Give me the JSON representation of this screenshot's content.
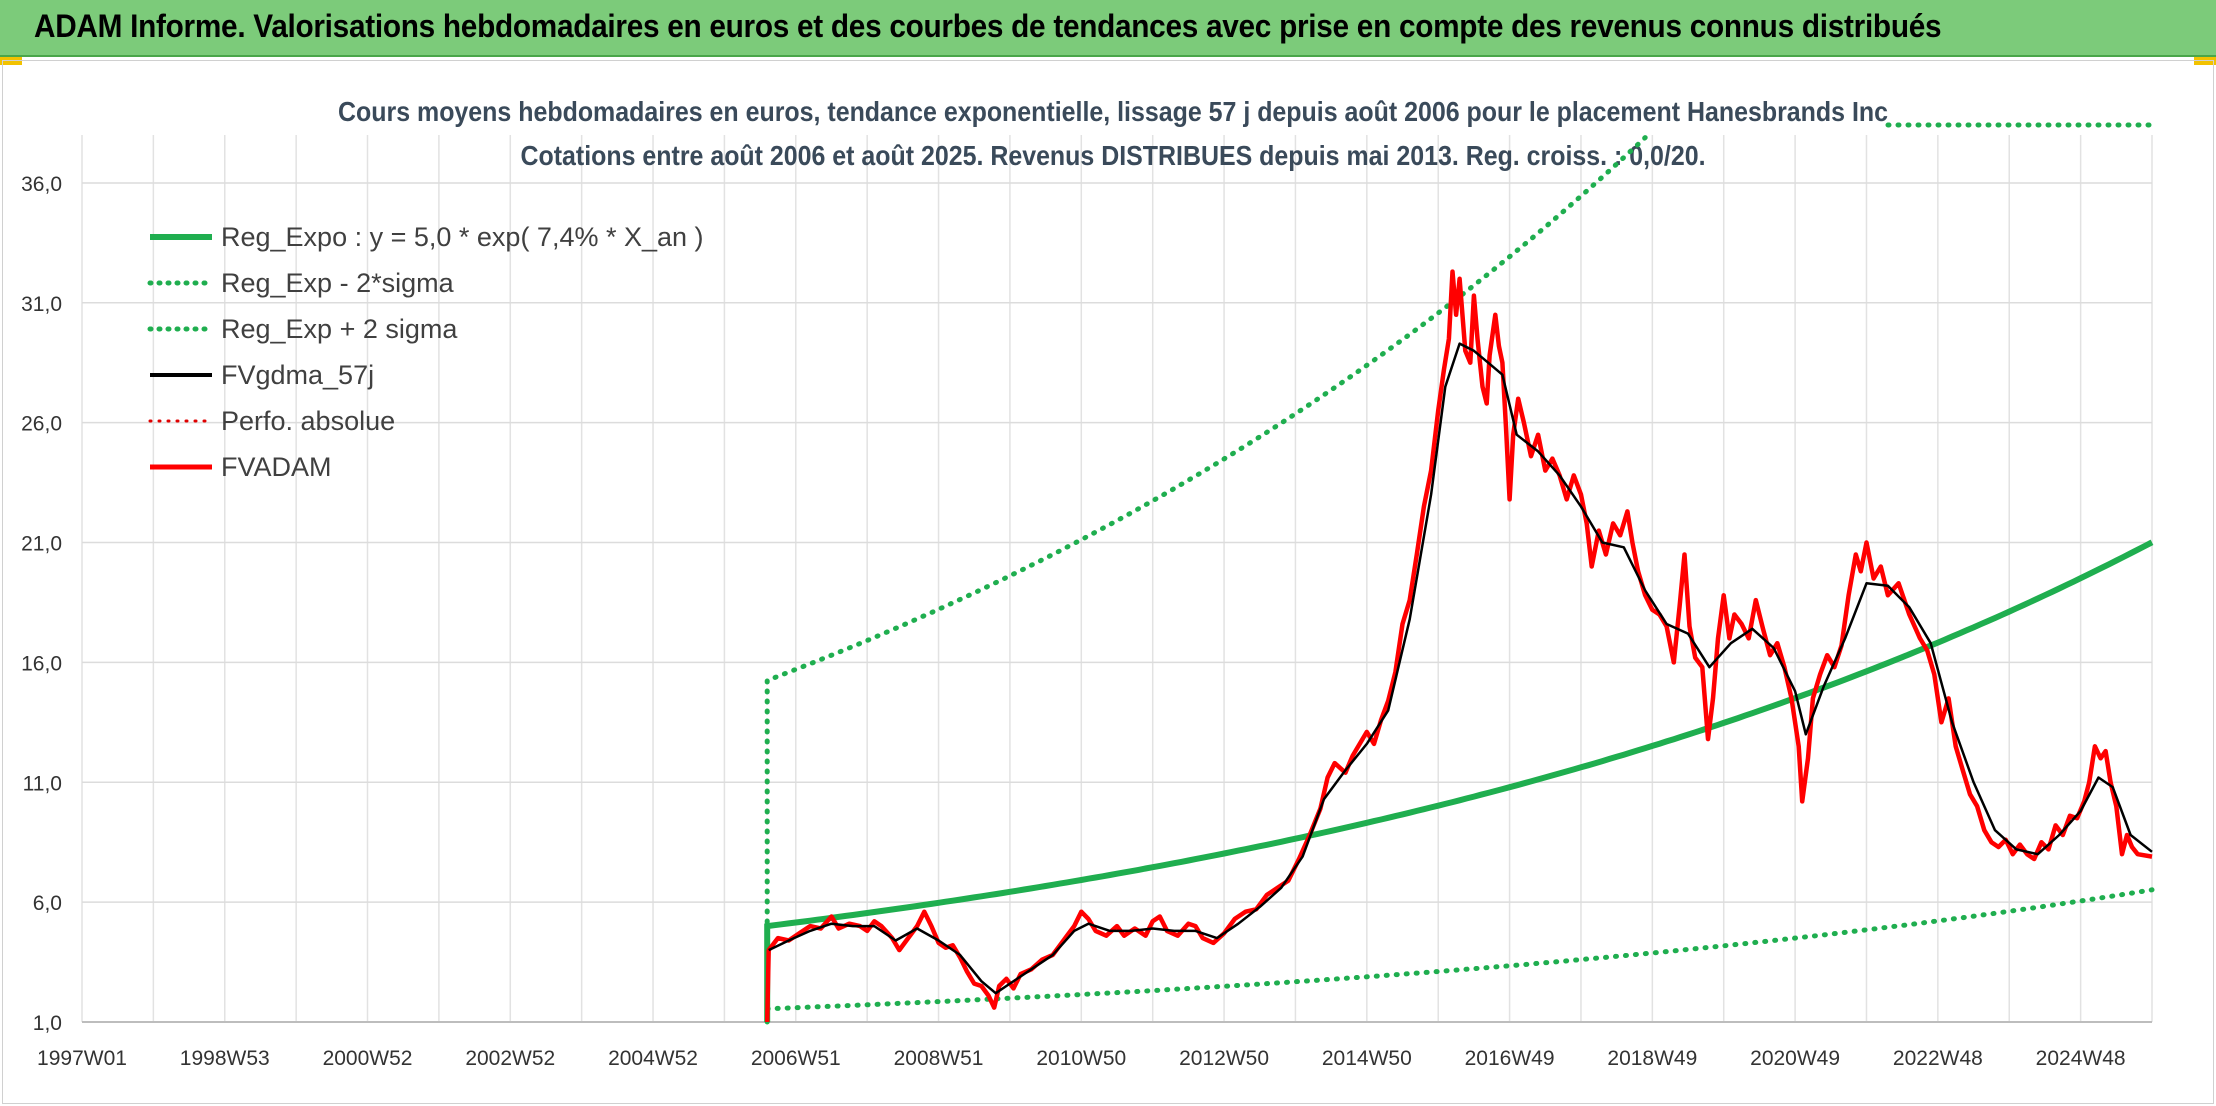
{
  "header": {
    "title": "ADAM Informe. Valorisations hebdomadaires en euros et des courbes de tendances avec prise en compte des revenus connus distribués"
  },
  "chart_data": {
    "type": "line",
    "title": "Cours moyens hebdomadaires en euros, tendance exponentielle, lissage 57 j depuis août 2006 pour le placement Hanesbrands Inc",
    "subtitle": "Cotations entre août 2006 et août 2025. Revenus DISTRIBUES depuis mai 2013. Reg. croiss. : 0,0/20.",
    "x_tick_labels": [
      "1997W01",
      "1998W53",
      "2000W52",
      "2002W52",
      "2004W52",
      "2006W51",
      "2008W51",
      "2010W50",
      "2012W50",
      "2014W50",
      "2016W49",
      "2018W49",
      "2020W49",
      "2022W48",
      "2024W48"
    ],
    "x_tick_years": [
      1997.0,
      1999.0,
      2001.0,
      2003.0,
      2005.0,
      2007.0,
      2009.0,
      2011.0,
      2013.0,
      2015.0,
      2017.0,
      2019.0,
      2021.0,
      2023.0,
      2025.0
    ],
    "x_range": [
      1997.0,
      2026.0
    ],
    "y_tick_labels": [
      "1,0",
      "6,0",
      "11,0",
      "16,0",
      "21,0",
      "26,0",
      "31,0",
      "36,0"
    ],
    "y_ticks": [
      1,
      6,
      11,
      16,
      21,
      26,
      31,
      36
    ],
    "ylim": [
      1,
      38
    ],
    "grid": true,
    "legend_position": "top-left",
    "legend": [
      {
        "label": "Reg_Expo : y = 5,0 * exp( 7,4% *  X_an )",
        "color": "#1fae4f",
        "style": "solid",
        "width": 6
      },
      {
        "label": "Reg_Exp - 2*sigma",
        "color": "#1fae4f",
        "style": "dotted",
        "width": 5
      },
      {
        "label": "Reg_Exp + 2 sigma",
        "color": "#1fae4f",
        "style": "dotted",
        "width": 5
      },
      {
        "label": "FVgdma_57j",
        "color": "#000000",
        "style": "solid",
        "width": 4
      },
      {
        "label": "Perfo. absolue",
        "color": "#e00000",
        "style": "dotted",
        "width": 3
      },
      {
        "label": "FVADAM",
        "color": "#ff0000",
        "style": "solid",
        "width": 5
      }
    ],
    "regression": {
      "a": 5.0,
      "rate": 0.074,
      "x0": 2006.6,
      "x_end": 2026.0,
      "lower_factor": 0.31,
      "upper_factor": 3.05
    },
    "series_fvadam": [
      [
        2006.6,
        1.0
      ],
      [
        2006.62,
        4.0
      ],
      [
        2006.75,
        4.5
      ],
      [
        2006.9,
        4.4
      ],
      [
        2007.05,
        4.7
      ],
      [
        2007.2,
        5.0
      ],
      [
        2007.35,
        4.9
      ],
      [
        2007.5,
        5.4
      ],
      [
        2007.6,
        4.9
      ],
      [
        2007.75,
        5.1
      ],
      [
        2007.9,
        5.0
      ],
      [
        2008.0,
        4.8
      ],
      [
        2008.1,
        5.2
      ],
      [
        2008.2,
        5.0
      ],
      [
        2008.35,
        4.5
      ],
      [
        2008.45,
        4.0
      ],
      [
        2008.55,
        4.4
      ],
      [
        2008.7,
        5.0
      ],
      [
        2008.8,
        5.6
      ],
      [
        2008.9,
        5.0
      ],
      [
        2009.0,
        4.3
      ],
      [
        2009.1,
        4.1
      ],
      [
        2009.2,
        4.2
      ],
      [
        2009.3,
        3.7
      ],
      [
        2009.4,
        3.1
      ],
      [
        2009.5,
        2.6
      ],
      [
        2009.6,
        2.5
      ],
      [
        2009.7,
        2.1
      ],
      [
        2009.78,
        1.6
      ],
      [
        2009.85,
        2.5
      ],
      [
        2009.95,
        2.8
      ],
      [
        2010.05,
        2.4
      ],
      [
        2010.15,
        3.0
      ],
      [
        2010.3,
        3.2
      ],
      [
        2010.45,
        3.6
      ],
      [
        2010.6,
        3.8
      ],
      [
        2010.7,
        4.2
      ],
      [
        2010.8,
        4.6
      ],
      [
        2010.9,
        5.0
      ],
      [
        2011.0,
        5.6
      ],
      [
        2011.1,
        5.3
      ],
      [
        2011.2,
        4.8
      ],
      [
        2011.35,
        4.6
      ],
      [
        2011.5,
        5.0
      ],
      [
        2011.6,
        4.6
      ],
      [
        2011.75,
        4.9
      ],
      [
        2011.9,
        4.6
      ],
      [
        2012.0,
        5.2
      ],
      [
        2012.1,
        5.4
      ],
      [
        2012.2,
        4.8
      ],
      [
        2012.35,
        4.6
      ],
      [
        2012.5,
        5.1
      ],
      [
        2012.6,
        5.0
      ],
      [
        2012.7,
        4.5
      ],
      [
        2012.85,
        4.3
      ],
      [
        2013.0,
        4.7
      ],
      [
        2013.15,
        5.3
      ],
      [
        2013.3,
        5.6
      ],
      [
        2013.45,
        5.7
      ],
      [
        2013.6,
        6.3
      ],
      [
        2013.75,
        6.6
      ],
      [
        2013.9,
        6.9
      ],
      [
        2014.05,
        7.8
      ],
      [
        2014.2,
        8.8
      ],
      [
        2014.35,
        9.9
      ],
      [
        2014.45,
        11.2
      ],
      [
        2014.55,
        11.8
      ],
      [
        2014.7,
        11.4
      ],
      [
        2014.8,
        12.1
      ],
      [
        2014.9,
        12.6
      ],
      [
        2015.0,
        13.1
      ],
      [
        2015.1,
        12.6
      ],
      [
        2015.2,
        13.6
      ],
      [
        2015.3,
        14.4
      ],
      [
        2015.4,
        15.6
      ],
      [
        2015.5,
        17.6
      ],
      [
        2015.6,
        18.6
      ],
      [
        2015.7,
        20.5
      ],
      [
        2015.8,
        22.5
      ],
      [
        2015.9,
        24.0
      ],
      [
        2016.0,
        26.5
      ],
      [
        2016.08,
        28.2
      ],
      [
        2016.15,
        29.5
      ],
      [
        2016.2,
        32.3
      ],
      [
        2016.25,
        30.5
      ],
      [
        2016.3,
        32.0
      ],
      [
        2016.38,
        29.0
      ],
      [
        2016.45,
        28.5
      ],
      [
        2016.5,
        31.3
      ],
      [
        2016.55,
        29.5
      ],
      [
        2016.62,
        27.5
      ],
      [
        2016.68,
        26.8
      ],
      [
        2016.72,
        28.8
      ],
      [
        2016.8,
        30.5
      ],
      [
        2016.85,
        29.2
      ],
      [
        2016.9,
        28.5
      ],
      [
        2016.95,
        25.8
      ],
      [
        2017.0,
        22.8
      ],
      [
        2017.05,
        25.5
      ],
      [
        2017.12,
        27.0
      ],
      [
        2017.2,
        26.0
      ],
      [
        2017.3,
        24.6
      ],
      [
        2017.4,
        25.5
      ],
      [
        2017.5,
        24.0
      ],
      [
        2017.6,
        24.5
      ],
      [
        2017.7,
        23.8
      ],
      [
        2017.8,
        22.8
      ],
      [
        2017.9,
        23.8
      ],
      [
        2018.0,
        23.0
      ],
      [
        2018.08,
        21.8
      ],
      [
        2018.15,
        20.0
      ],
      [
        2018.25,
        21.5
      ],
      [
        2018.35,
        20.5
      ],
      [
        2018.45,
        21.8
      ],
      [
        2018.55,
        21.3
      ],
      [
        2018.65,
        22.3
      ],
      [
        2018.72,
        21.0
      ],
      [
        2018.8,
        19.8
      ],
      [
        2018.9,
        18.8
      ],
      [
        2019.0,
        18.2
      ],
      [
        2019.1,
        18.0
      ],
      [
        2019.2,
        17.5
      ],
      [
        2019.3,
        16.0
      ],
      [
        2019.38,
        18.3
      ],
      [
        2019.45,
        20.5
      ],
      [
        2019.52,
        17.5
      ],
      [
        2019.6,
        16.2
      ],
      [
        2019.7,
        15.8
      ],
      [
        2019.78,
        12.8
      ],
      [
        2019.85,
        14.5
      ],
      [
        2019.92,
        17.0
      ],
      [
        2020.0,
        18.8
      ],
      [
        2020.08,
        17.0
      ],
      [
        2020.15,
        18.0
      ],
      [
        2020.25,
        17.6
      ],
      [
        2020.35,
        17.0
      ],
      [
        2020.45,
        18.6
      ],
      [
        2020.55,
        17.4
      ],
      [
        2020.65,
        16.3
      ],
      [
        2020.75,
        16.8
      ],
      [
        2020.85,
        15.8
      ],
      [
        2020.95,
        14.5
      ],
      [
        2021.05,
        12.5
      ],
      [
        2021.1,
        10.2
      ],
      [
        2021.18,
        12.0
      ],
      [
        2021.25,
        14.5
      ],
      [
        2021.35,
        15.5
      ],
      [
        2021.45,
        16.3
      ],
      [
        2021.55,
        15.8
      ],
      [
        2021.65,
        16.7
      ],
      [
        2021.75,
        18.8
      ],
      [
        2021.85,
        20.5
      ],
      [
        2021.92,
        19.8
      ],
      [
        2022.0,
        21.0
      ],
      [
        2022.1,
        19.5
      ],
      [
        2022.2,
        20.0
      ],
      [
        2022.3,
        18.8
      ],
      [
        2022.45,
        19.3
      ],
      [
        2022.6,
        18.0
      ],
      [
        2022.75,
        17.0
      ],
      [
        2022.85,
        16.5
      ],
      [
        2022.95,
        15.5
      ],
      [
        2023.05,
        13.5
      ],
      [
        2023.15,
        14.5
      ],
      [
        2023.25,
        12.5
      ],
      [
        2023.35,
        11.5
      ],
      [
        2023.45,
        10.5
      ],
      [
        2023.55,
        10.0
      ],
      [
        2023.65,
        9.0
      ],
      [
        2023.75,
        8.5
      ],
      [
        2023.85,
        8.3
      ],
      [
        2023.95,
        8.6
      ],
      [
        2024.05,
        8.0
      ],
      [
        2024.15,
        8.4
      ],
      [
        2024.25,
        8.0
      ],
      [
        2024.35,
        7.8
      ],
      [
        2024.45,
        8.5
      ],
      [
        2024.55,
        8.2
      ],
      [
        2024.65,
        9.2
      ],
      [
        2024.75,
        8.8
      ],
      [
        2024.85,
        9.6
      ],
      [
        2024.95,
        9.5
      ],
      [
        2025.05,
        10.2
      ],
      [
        2025.12,
        11.0
      ],
      [
        2025.2,
        12.5
      ],
      [
        2025.28,
        12.0
      ],
      [
        2025.35,
        12.3
      ],
      [
        2025.42,
        11.0
      ],
      [
        2025.5,
        10.0
      ],
      [
        2025.58,
        8.0
      ],
      [
        2025.65,
        8.8
      ],
      [
        2025.72,
        8.3
      ],
      [
        2025.8,
        8.0
      ],
      [
        2026.0,
        7.9
      ]
    ],
    "series_fvgdma": [
      [
        2006.62,
        4.0
      ],
      [
        2006.9,
        4.4
      ],
      [
        2007.2,
        4.8
      ],
      [
        2007.5,
        5.1
      ],
      [
        2007.8,
        5.0
      ],
      [
        2008.1,
        5.0
      ],
      [
        2008.4,
        4.4
      ],
      [
        2008.7,
        4.9
      ],
      [
        2009.0,
        4.4
      ],
      [
        2009.3,
        3.8
      ],
      [
        2009.6,
        2.7
      ],
      [
        2009.8,
        2.2
      ],
      [
        2010.0,
        2.6
      ],
      [
        2010.3,
        3.2
      ],
      [
        2010.6,
        3.8
      ],
      [
        2010.9,
        4.8
      ],
      [
        2011.1,
        5.1
      ],
      [
        2011.4,
        4.8
      ],
      [
        2011.7,
        4.8
      ],
      [
        2012.0,
        4.9
      ],
      [
        2012.3,
        4.8
      ],
      [
        2012.6,
        4.8
      ],
      [
        2012.9,
        4.5
      ],
      [
        2013.2,
        5.1
      ],
      [
        2013.5,
        5.8
      ],
      [
        2013.8,
        6.6
      ],
      [
        2014.1,
        7.9
      ],
      [
        2014.4,
        10.3
      ],
      [
        2014.7,
        11.5
      ],
      [
        2015.0,
        12.6
      ],
      [
        2015.3,
        14.0
      ],
      [
        2015.6,
        17.8
      ],
      [
        2015.9,
        23.0
      ],
      [
        2016.1,
        27.5
      ],
      [
        2016.3,
        29.3
      ],
      [
        2016.5,
        29.0
      ],
      [
        2016.7,
        28.5
      ],
      [
        2016.9,
        28.0
      ],
      [
        2017.1,
        25.5
      ],
      [
        2017.4,
        24.8
      ],
      [
        2017.7,
        23.8
      ],
      [
        2018.0,
        22.5
      ],
      [
        2018.3,
        21.0
      ],
      [
        2018.6,
        20.8
      ],
      [
        2018.9,
        19.0
      ],
      [
        2019.2,
        17.6
      ],
      [
        2019.5,
        17.2
      ],
      [
        2019.8,
        15.8
      ],
      [
        2020.1,
        16.8
      ],
      [
        2020.4,
        17.4
      ],
      [
        2020.7,
        16.6
      ],
      [
        2021.0,
        14.8
      ],
      [
        2021.15,
        13.0
      ],
      [
        2021.4,
        15.0
      ],
      [
        2021.7,
        17.0
      ],
      [
        2022.0,
        19.3
      ],
      [
        2022.3,
        19.2
      ],
      [
        2022.6,
        18.3
      ],
      [
        2022.9,
        16.8
      ],
      [
        2023.2,
        13.5
      ],
      [
        2023.5,
        11.0
      ],
      [
        2023.8,
        9.0
      ],
      [
        2024.1,
        8.2
      ],
      [
        2024.4,
        8.0
      ],
      [
        2024.7,
        8.8
      ],
      [
        2025.0,
        9.8
      ],
      [
        2025.25,
        11.2
      ],
      [
        2025.45,
        10.8
      ],
      [
        2025.7,
        8.8
      ],
      [
        2026.0,
        8.1
      ]
    ]
  }
}
